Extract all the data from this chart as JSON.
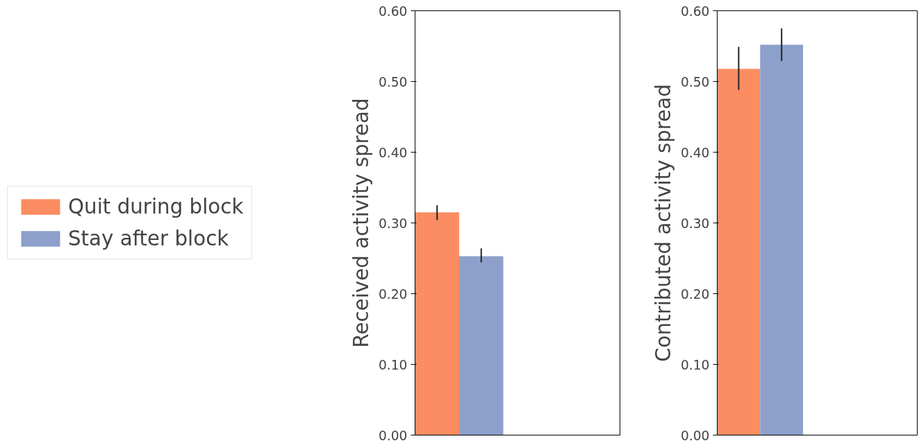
{
  "chart_data": [
    {
      "type": "bar",
      "ylabel": "Received activity spread",
      "categories": [
        null
      ],
      "legend": "left",
      "tick_labels": "y",
      "grid": false,
      "ylim": [
        0,
        0.6
      ],
      "yticks": [
        {
          "value": 0,
          "label": "0.00"
        },
        {
          "value": 0.1,
          "label": "0.10"
        },
        {
          "value": 0.2,
          "label": "0.20"
        },
        {
          "value": 0.3,
          "label": "0.30"
        },
        {
          "value": 0.4,
          "label": "0.40"
        },
        {
          "value": 0.5,
          "label": "0.50"
        },
        {
          "value": 0.6,
          "label": "0.60"
        }
      ],
      "series": [
        {
          "name": "Quit during block",
          "color": "#fc8d62",
          "values": [
            0.315
          ],
          "errors": [
            [
              0.304,
              0.325
            ]
          ]
        },
        {
          "name": "Stay after block",
          "color": "#8da0cb",
          "values": [
            0.253
          ],
          "errors": [
            [
              0.244,
              0.264
            ]
          ]
        }
      ]
    },
    {
      "type": "bar",
      "ylabel": "Contributed activity spread",
      "categories": [
        null
      ],
      "tick_labels": "y",
      "grid": false,
      "ylim": [
        0,
        0.6
      ],
      "yticks": [
        {
          "value": 0,
          "label": "0.00"
        },
        {
          "value": 0.1,
          "label": "0.10"
        },
        {
          "value": 0.2,
          "label": "0.20"
        },
        {
          "value": 0.3,
          "label": "0.30"
        },
        {
          "value": 0.4,
          "label": "0.40"
        },
        {
          "value": 0.5,
          "label": "0.50"
        },
        {
          "value": 0.6,
          "label": "0.60"
        }
      ],
      "series": [
        {
          "color": "#fc8d62",
          "values": [
            0.518
          ],
          "errors": [
            [
              0.488,
              0.549
            ]
          ]
        },
        {
          "color": "#8da0cb",
          "values": [
            0.552
          ],
          "errors": [
            [
              0.529,
              0.575
            ]
          ]
        }
      ]
    }
  ]
}
